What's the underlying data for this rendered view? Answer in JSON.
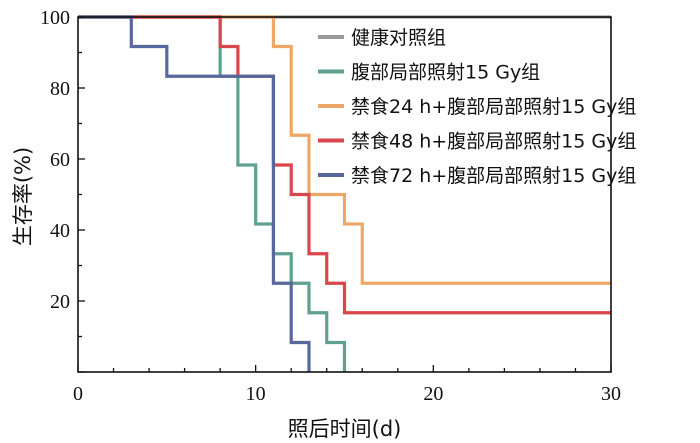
{
  "chart_data": {
    "type": "line",
    "step": true,
    "xlabel": "照后时间(d)",
    "ylabel": "生存率(%)",
    "xlim": [
      0,
      30
    ],
    "ylim": [
      0,
      100
    ],
    "xticks": [
      0,
      10,
      20,
      30
    ],
    "yticks": [
      20,
      40,
      60,
      80,
      100
    ],
    "grid": false,
    "legend": "top-right",
    "series": [
      {
        "name": "健康对照组",
        "color": "#9a9a9a",
        "x": [
          0,
          30
        ],
        "y": [
          100,
          100
        ]
      },
      {
        "name": "腹部局部照射15 Gy组",
        "color": "#5fa091",
        "x": [
          0,
          8,
          9,
          10,
          11,
          12,
          13,
          14,
          15
        ],
        "y": [
          100,
          83.3,
          58.3,
          41.7,
          33.3,
          25,
          16.7,
          8.3,
          0
        ]
      },
      {
        "name": "禁食24 h+腹部局部照射15 Gy组",
        "color": "#eda868",
        "x": [
          0,
          11,
          12,
          13,
          15,
          16,
          30
        ],
        "y": [
          100,
          91.7,
          66.7,
          50,
          41.7,
          25,
          25
        ]
      },
      {
        "name": "禁食48 h+腹部局部照射15 Gy组",
        "color": "#d9464c",
        "x": [
          0,
          8,
          9,
          11,
          12,
          13,
          14,
          15,
          30
        ],
        "y": [
          100,
          91.7,
          83.3,
          58.3,
          50,
          33.3,
          25,
          16.7,
          16.7
        ]
      },
      {
        "name": "禁食72 h+腹部局部照射15 Gy组",
        "color": "#56699a",
        "x": [
          0,
          3,
          5,
          11,
          12,
          13
        ],
        "y": [
          100,
          91.7,
          83.3,
          25,
          8.3,
          0
        ]
      }
    ]
  }
}
